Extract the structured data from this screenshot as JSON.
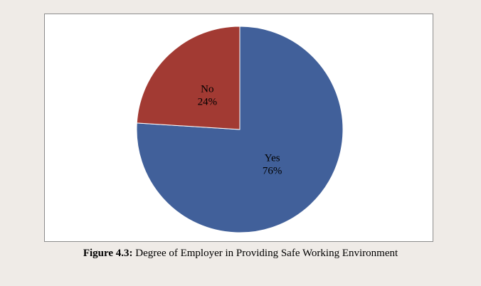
{
  "chart_data": {
    "type": "pie",
    "title": "",
    "slices": [
      {
        "label": "Yes",
        "value": 76,
        "display": "76%",
        "color": "#41609a"
      },
      {
        "label": "No",
        "value": 24,
        "display": "24%",
        "color": "#a23a33"
      }
    ],
    "start_angle_deg": 0,
    "direction": "clockwise",
    "legend": "none",
    "background": "#ffffff",
    "slice_border": "#ffffff"
  },
  "caption": {
    "figure_label": "Figure 4.3:",
    "text": " Degree of Employer in Providing Safe Working Environment"
  },
  "page": {
    "background": "#efebe7",
    "frame_border": "#8c8c8c"
  }
}
